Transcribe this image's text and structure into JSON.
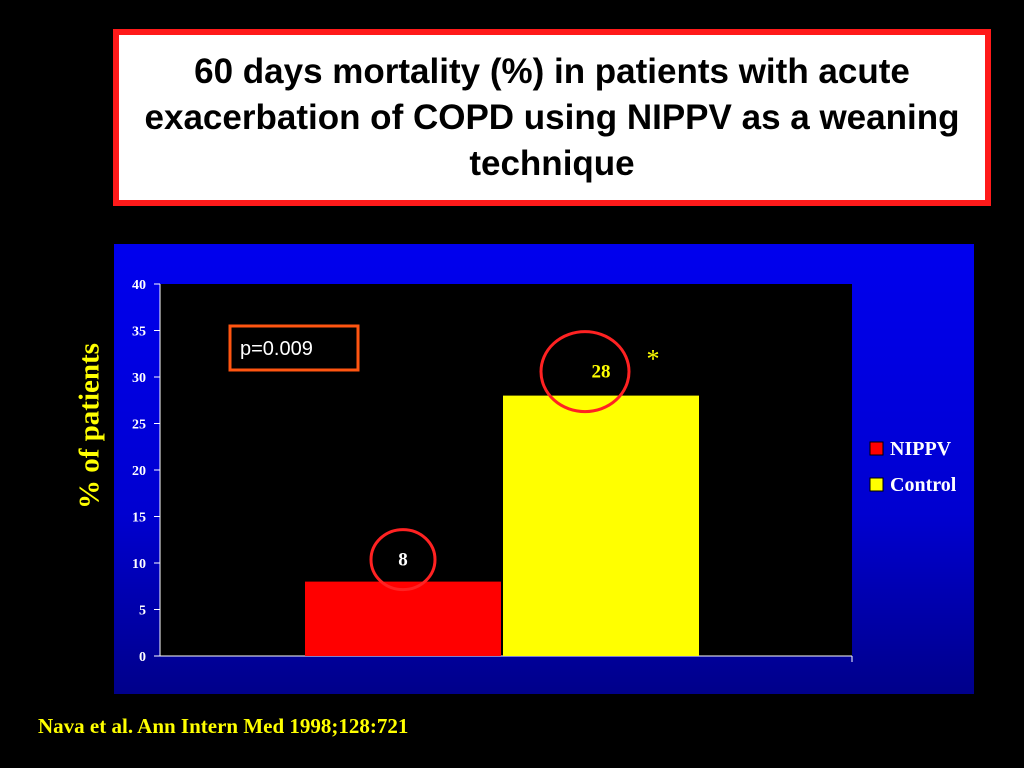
{
  "title": "60 days mortality (%) in patients with acute exacerbation of COPD using NIPPV as a weaning technique",
  "source": "Nava et al. Ann Intern Med 1998;128:721",
  "chart_data": {
    "type": "bar",
    "title": "",
    "ylabel": "%   of patients",
    "xlabel": "",
    "ylim": [
      0,
      40
    ],
    "yticks": [
      0,
      5,
      10,
      15,
      20,
      25,
      30,
      35,
      40
    ],
    "grid": false,
    "legend_position": "right",
    "series": [
      {
        "name": "NIPPV",
        "value": 8,
        "color": "#ff0000",
        "data_label": "8"
      },
      {
        "name": "Control",
        "value": 28,
        "color": "#ffff00",
        "data_label": "28"
      }
    ],
    "annotations": {
      "p_value": "p=0.009",
      "significance_marker": "*"
    },
    "colors": {
      "plot_background": "#000000",
      "panel_background": "#0000e0",
      "highlight_circle": "#ff2222",
      "label_color": "#ffff00"
    }
  }
}
